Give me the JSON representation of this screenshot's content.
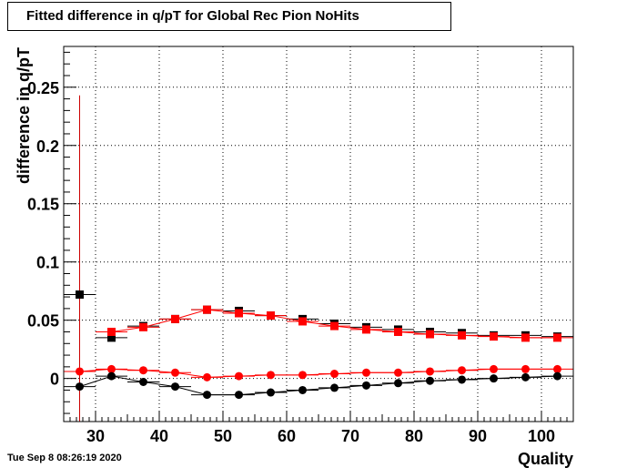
{
  "title": "Fitted difference in q/pT for Global Rec Pion NoHits",
  "timestamp": "Tue Sep  8 08:26:19 2020",
  "chart_data": {
    "type": "scatter",
    "xlabel": "Quality",
    "ylabel": "difference in q/pT",
    "xlim": [
      25,
      105
    ],
    "ylim": [
      -0.037,
      0.285
    ],
    "xticks": [
      30,
      40,
      50,
      60,
      70,
      80,
      90,
      100
    ],
    "yticks": [
      0,
      0.05,
      0.1,
      0.15,
      0.2,
      0.25
    ],
    "ytick_labels": [
      "0",
      "0.05",
      "0.1",
      "0.15",
      "0.2",
      "0.25"
    ],
    "grid": true,
    "bin_half_width": 2.5,
    "series": [
      {
        "marker": "square",
        "color": "#000000",
        "line": false,
        "points": [
          {
            "x": 27.5,
            "y": 0.072
          },
          {
            "x": 32.5,
            "y": 0.035
          },
          {
            "x": 37.5,
            "y": 0.045
          },
          {
            "x": 42.5,
            "y": 0.051
          },
          {
            "x": 47.5,
            "y": 0.059
          },
          {
            "x": 52.5,
            "y": 0.058
          },
          {
            "x": 57.5,
            "y": 0.054
          },
          {
            "x": 62.5,
            "y": 0.051
          },
          {
            "x": 67.5,
            "y": 0.047
          },
          {
            "x": 72.5,
            "y": 0.044
          },
          {
            "x": 77.5,
            "y": 0.042
          },
          {
            "x": 82.5,
            "y": 0.04
          },
          {
            "x": 87.5,
            "y": 0.039
          },
          {
            "x": 92.5,
            "y": 0.037
          },
          {
            "x": 97.5,
            "y": 0.037
          },
          {
            "x": 102.5,
            "y": 0.036
          }
        ]
      },
      {
        "marker": "square",
        "color": "#ff0000",
        "line": true,
        "points": [
          {
            "x": 32.5,
            "y": 0.04
          },
          {
            "x": 37.5,
            "y": 0.044
          },
          {
            "x": 42.5,
            "y": 0.051
          },
          {
            "x": 47.5,
            "y": 0.059
          },
          {
            "x": 52.5,
            "y": 0.056
          },
          {
            "x": 57.5,
            "y": 0.054
          },
          {
            "x": 62.5,
            "y": 0.049
          },
          {
            "x": 67.5,
            "y": 0.045
          },
          {
            "x": 72.5,
            "y": 0.042
          },
          {
            "x": 77.5,
            "y": 0.04
          },
          {
            "x": 82.5,
            "y": 0.038
          },
          {
            "x": 87.5,
            "y": 0.037
          },
          {
            "x": 92.5,
            "y": 0.036
          },
          {
            "x": 97.5,
            "y": 0.035
          },
          {
            "x": 102.5,
            "y": 0.035
          }
        ]
      },
      {
        "marker": "circle",
        "color": "#ff0000",
        "line": true,
        "points": [
          {
            "x": 27.5,
            "y": 0.006
          },
          {
            "x": 32.5,
            "y": 0.008
          },
          {
            "x": 37.5,
            "y": 0.007
          },
          {
            "x": 42.5,
            "y": 0.005
          },
          {
            "x": 47.5,
            "y": 0.001
          },
          {
            "x": 52.5,
            "y": 0.002
          },
          {
            "x": 57.5,
            "y": 0.003
          },
          {
            "x": 62.5,
            "y": 0.003
          },
          {
            "x": 67.5,
            "y": 0.004
          },
          {
            "x": 72.5,
            "y": 0.005
          },
          {
            "x": 77.5,
            "y": 0.005
          },
          {
            "x": 82.5,
            "y": 0.006
          },
          {
            "x": 87.5,
            "y": 0.007
          },
          {
            "x": 92.5,
            "y": 0.008
          },
          {
            "x": 97.5,
            "y": 0.008
          },
          {
            "x": 102.5,
            "y": 0.008
          }
        ]
      },
      {
        "marker": "circle",
        "color": "#000000",
        "line": true,
        "points": [
          {
            "x": 27.5,
            "y": -0.007
          },
          {
            "x": 32.5,
            "y": 0.002
          },
          {
            "x": 37.5,
            "y": -0.003
          },
          {
            "x": 42.5,
            "y": -0.007
          },
          {
            "x": 47.5,
            "y": -0.014
          },
          {
            "x": 52.5,
            "y": -0.014
          },
          {
            "x": 57.5,
            "y": -0.012
          },
          {
            "x": 62.5,
            "y": -0.01
          },
          {
            "x": 67.5,
            "y": -0.008
          },
          {
            "x": 72.5,
            "y": -0.006
          },
          {
            "x": 77.5,
            "y": -0.004
          },
          {
            "x": 82.5,
            "y": -0.002
          },
          {
            "x": 87.5,
            "y": -0.001
          },
          {
            "x": 92.5,
            "y": 0.0
          },
          {
            "x": 97.5,
            "y": 0.001
          },
          {
            "x": 102.5,
            "y": 0.002
          }
        ]
      }
    ],
    "error_bars": [
      {
        "x": 27.5,
        "y_low": -0.037,
        "y_high": 0.243,
        "color": "#cc0000"
      }
    ]
  }
}
